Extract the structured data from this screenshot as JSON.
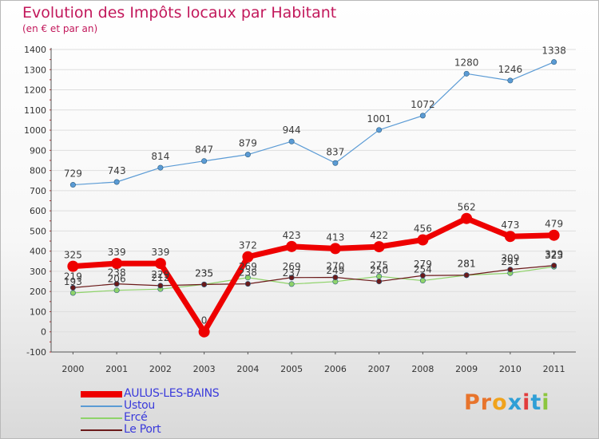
{
  "title": "Evolution des Impôts locaux par Habitant",
  "subtitle": "(en € et par an)",
  "logo": {
    "text": "Proxiti",
    "colors": [
      "#e8742c",
      "#e8742c",
      "#f0a31c",
      "#2f9fd6",
      "#e23d3d",
      "#2f9fd6",
      "#8cc63f"
    ]
  },
  "chart_data": {
    "type": "line",
    "x": [
      "2000",
      "2001",
      "2002",
      "2003",
      "2004",
      "2005",
      "2006",
      "2007",
      "2008",
      "2009",
      "2010",
      "2011"
    ],
    "yticks": [
      "-100",
      "0",
      "100",
      "200",
      "300",
      "400",
      "500",
      "600",
      "700",
      "800",
      "900",
      "1000",
      "1100",
      "1200",
      "1300",
      "1400"
    ],
    "ylim": [
      -100,
      1400
    ],
    "series": [
      {
        "name": "AULUS-LES-BAINS",
        "color": "#ee0000",
        "width": 7,
        "marker": 7,
        "values": [
          325,
          339,
          339,
          0,
          372,
          423,
          413,
          422,
          456,
          562,
          473,
          479
        ],
        "labels": [
          "325",
          "339",
          "339",
          "0",
          "372",
          "423",
          "413",
          "422",
          "456",
          "562",
          "473",
          "479"
        ]
      },
      {
        "name": "Ustou",
        "color": "#5b9bd5",
        "width": 1.2,
        "marker": 3.2,
        "values": [
          729,
          743,
          814,
          847,
          879,
          944,
          837,
          1001,
          1072,
          1280,
          1246,
          1338
        ],
        "labels": [
          "729",
          "743",
          "814",
          "847",
          "879",
          "944",
          "837",
          "1001",
          "1072",
          "1280",
          "1246",
          "1338"
        ]
      },
      {
        "name": "Ercé",
        "color": "#8fd36a",
        "width": 1.2,
        "marker": 3.2,
        "values": [
          193,
          206,
          212,
          235,
          269,
          237,
          249,
          275,
          254,
          281,
          291,
          323
        ],
        "labels": [
          "193",
          "206",
          "212",
          "235",
          "269",
          "237",
          "249",
          "275",
          "254",
          "281",
          "291",
          "323"
        ]
      },
      {
        "name": "Le Port",
        "color": "#6b1a1a",
        "width": 1.2,
        "marker": 3.2,
        "values": [
          219,
          238,
          229,
          235,
          238,
          269,
          270,
          250,
          279,
          281,
          309,
          329
        ],
        "labels": [
          "219",
          "238",
          "229",
          "235",
          "238",
          "269",
          "270",
          "250",
          "279",
          "281",
          "309",
          "329"
        ]
      }
    ],
    "title": "Evolution des Impôts locaux par Habitant",
    "ylabel": "(en € et par an)",
    "grid": true
  }
}
